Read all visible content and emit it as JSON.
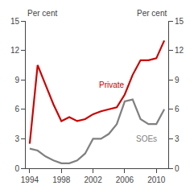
{
  "chart_data": {
    "type": "line",
    "x": [
      1994,
      1995,
      1996,
      1997,
      1998,
      1999,
      2000,
      2001,
      2002,
      2003,
      2004,
      2005,
      2006,
      2007,
      2008,
      2009,
      2010,
      2011
    ],
    "series": [
      {
        "name": "Private",
        "color": "#cc0000",
        "values": [
          2.5,
          10.5,
          8.5,
          6.5,
          4.8,
          5.2,
          4.8,
          5.0,
          5.5,
          5.8,
          6.0,
          6.2,
          7.5,
          9.5,
          11.0,
          11.0,
          11.2,
          13.0
        ]
      },
      {
        "name": "SOEs",
        "color": "#808080",
        "values": [
          2.0,
          1.8,
          1.2,
          0.8,
          0.5,
          0.5,
          0.8,
          1.5,
          3.0,
          3.0,
          3.5,
          4.5,
          6.8,
          7.0,
          5.0,
          4.5,
          4.5,
          6.0
        ]
      }
    ],
    "annotations": [
      {
        "text": "Private",
        "x": 2002.5,
        "y": 8.5,
        "color": "#cc0000"
      },
      {
        "text": "SOEs",
        "x": 2007.2,
        "y": 3.0,
        "color": "#808080"
      }
    ],
    "ylabel": "Per cent",
    "y2label": "Per cent",
    "xlim": [
      1993.5,
      2011.5
    ],
    "xticks": [
      1994,
      1998,
      2002,
      2006,
      2010
    ],
    "ylim": [
      0,
      15
    ],
    "yticks": [
      0,
      3,
      6,
      9,
      12,
      15
    ],
    "y2lim": [
      0,
      15
    ],
    "y2ticks": [
      0,
      3,
      6,
      9,
      12,
      15
    ],
    "grid": false
  }
}
